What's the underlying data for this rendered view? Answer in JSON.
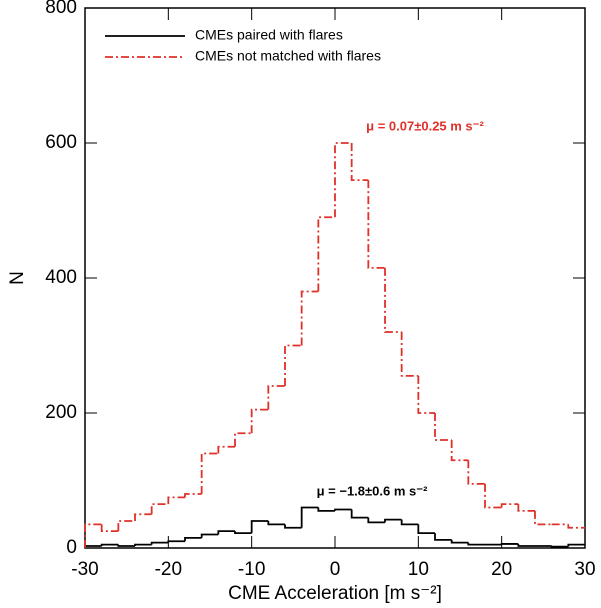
{
  "chart_data": {
    "type": "histogram",
    "xlabel": "CME Acceleration [m s⁻²]",
    "ylabel": "N",
    "bins": [
      -30,
      -28,
      -26,
      -24,
      -22,
      -20,
      -18,
      -16,
      -14,
      -12,
      -10,
      -8,
      -6,
      -4,
      -2,
      0,
      2,
      4,
      6,
      8,
      10,
      12,
      14,
      16,
      18,
      20,
      22,
      24,
      26,
      28,
      30
    ],
    "series": [
      {
        "name": "CMEs paired with flares",
        "color": "#000000",
        "dash": "solid",
        "values": [
          3,
          5,
          3,
          5,
          8,
          10,
          15,
          20,
          25,
          22,
          40,
          35,
          30,
          60,
          55,
          57,
          45,
          38,
          42,
          35,
          22,
          12,
          8,
          5,
          5,
          6,
          3,
          3,
          2,
          5
        ]
      },
      {
        "name": "CMEs not matched with flares",
        "color": "#e0302a",
        "dash": "dashdot",
        "values": [
          35,
          25,
          40,
          50,
          65,
          75,
          80,
          140,
          150,
          170,
          205,
          240,
          300,
          380,
          490,
          600,
          545,
          415,
          320,
          255,
          200,
          160,
          130,
          95,
          60,
          65,
          55,
          35,
          35,
          30
        ]
      }
    ],
    "annotations": [
      {
        "text": "μ = −1.8±0.6 m s⁻²",
        "color": "#000000"
      },
      {
        "text": "μ = 0.07±0.25 m s⁻²",
        "color": "#e0302a"
      }
    ],
    "xlim": [
      -30,
      30
    ],
    "ylim": [
      0,
      800
    ],
    "xticks": [
      -30,
      -20,
      -10,
      0,
      10,
      20,
      30
    ],
    "yticks": [
      0,
      200,
      400,
      600,
      800
    ],
    "legend": "upper left"
  }
}
